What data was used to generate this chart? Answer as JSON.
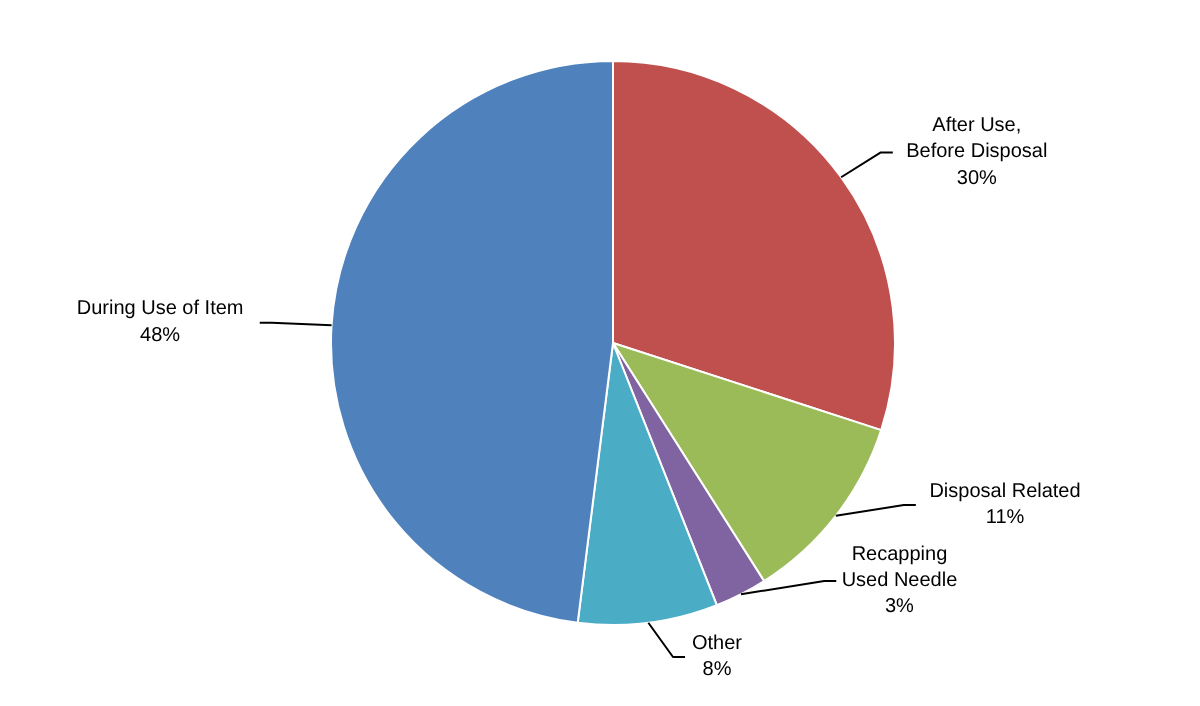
{
  "chart_data": {
    "type": "pie",
    "categories": [
      "After Use,\nBefore Disposal",
      "Disposal Related",
      "Recapping\nUsed Needle",
      "Other",
      "During Use of Item"
    ],
    "values": [
      30,
      11,
      3,
      8,
      48
    ],
    "colors": [
      "#c0504d",
      "#9bbb59",
      "#8064a2",
      "#4bacc6",
      "#4f81bd"
    ],
    "value_labels": [
      "30%",
      "11%",
      "3%",
      "8%",
      "48%"
    ],
    "legend": false
  }
}
